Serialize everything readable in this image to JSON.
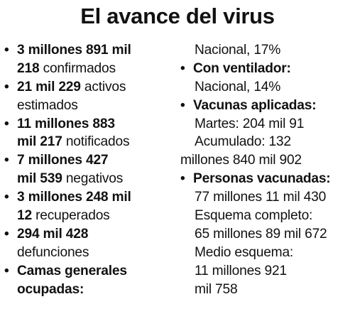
{
  "title": "El avance del virus",
  "left_column": [
    {
      "bold_1": "3 millones 891 mil",
      "bold_2": "218",
      "text": "confirmados"
    },
    {
      "bold_1": "21 mil 229",
      "text_1": "activos",
      "text_2": "estimados"
    },
    {
      "bold_1": "11 millones 883",
      "bold_2": "mil 217",
      "text": "notificados"
    },
    {
      "bold_1": "7 millones 427",
      "bold_2": "mil 539",
      "text": "negativos"
    },
    {
      "bold_1": "3 millones 248 mil",
      "bold_2": "12",
      "text": "recuperados"
    },
    {
      "bold_1": "294 mil 428",
      "text": "defunciones"
    },
    {
      "heading_1": "Camas generales",
      "heading_2": "ocupadas:"
    }
  ],
  "right_column": {
    "camas_value": "Nacional, 17%",
    "ventilador": {
      "heading": "Con ventilador:",
      "value": "Nacional, 14%"
    },
    "vacunas": {
      "heading": "Vacunas aplicadas:",
      "martes": "Martes: 204 mil 91",
      "acumulado_1": "Acumulado: 132",
      "acumulado_2": "millones 840 mil 902"
    },
    "personas": {
      "heading": "Personas vacunadas:",
      "total": "77 millones 11 mil 430",
      "completo_label": "Esquema completo:",
      "completo_value": "65 millones 89 mil 672",
      "medio_label": "Medio esquema:",
      "medio_1": "11 millones 921",
      "medio_2": "mil 758"
    }
  }
}
